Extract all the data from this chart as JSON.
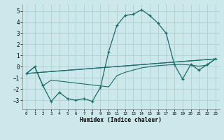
{
  "xlabel": "Humidex (Indice chaleur)",
  "xlim": [
    -0.5,
    23.5
  ],
  "ylim": [
    -3.8,
    5.6
  ],
  "xticks": [
    0,
    1,
    2,
    3,
    4,
    5,
    6,
    7,
    8,
    9,
    10,
    11,
    12,
    13,
    14,
    15,
    16,
    17,
    18,
    19,
    20,
    21,
    22,
    23
  ],
  "yticks": [
    -3,
    -2,
    -1,
    0,
    1,
    2,
    3,
    4,
    5
  ],
  "bg_color": "#cce8ea",
  "line_color": "#1a6b6b",
  "grid_color": "#b0d0d3",
  "arch_x": [
    0,
    1,
    2,
    3,
    4,
    5,
    6,
    7,
    8,
    9,
    10,
    11,
    12,
    13,
    14,
    15,
    16,
    17,
    18,
    19,
    20,
    21,
    22,
    23
  ],
  "arch_y": [
    -0.6,
    0.0,
    -1.7,
    -3.1,
    -2.3,
    -2.85,
    -3.0,
    -2.85,
    -3.1,
    -1.85,
    1.35,
    3.7,
    4.6,
    4.7,
    5.1,
    4.6,
    3.9,
    3.0,
    0.2,
    -1.1,
    0.2,
    -0.3,
    0.2,
    0.7
  ],
  "line2_x": [
    0,
    1,
    2,
    3,
    10,
    11,
    12,
    13,
    14,
    15,
    16,
    17,
    18,
    19,
    20,
    21,
    22,
    23
  ],
  "line2_y": [
    -0.6,
    0.0,
    -1.7,
    -1.2,
    -1.8,
    -0.8,
    -0.5,
    -0.3,
    -0.1,
    0.0,
    0.1,
    0.15,
    0.2,
    0.2,
    0.15,
    0.05,
    0.15,
    0.7
  ],
  "line3_x": [
    0,
    23
  ],
  "line3_y": [
    -0.6,
    0.7
  ],
  "line4_x": [
    0,
    23
  ],
  "line4_y": [
    -0.6,
    0.7
  ]
}
